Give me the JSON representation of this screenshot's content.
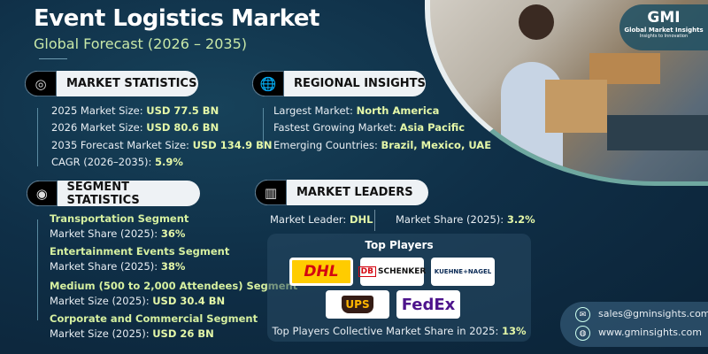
{
  "header": {
    "title": "Event Logistics Market",
    "subtitle": "Global Forecast (2026 – 2035)"
  },
  "brand": {
    "logo_text": "GMI",
    "name": "Global Market Insights",
    "tagline": "Insights to Innovation"
  },
  "market_statistics": {
    "heading": "MARKET STATISTICS",
    "icon": "chart-globe-icon",
    "items": [
      {
        "label": "2025 Market Size: ",
        "value": "USD 77.5 BN"
      },
      {
        "label": "2026 Market Size: ",
        "value": "USD 80.6 BN"
      },
      {
        "label": "2035 Forecast Market Size: ",
        "value": "USD 134.9 BN"
      },
      {
        "label": "CAGR (2026–2035): ",
        "value": "5.9%"
      }
    ]
  },
  "regional_insights": {
    "heading": "REGIONAL INSIGHTS",
    "icon": "globe-icon",
    "items": [
      {
        "label": "Largest Market: ",
        "value": "North America"
      },
      {
        "label": "Fastest Growing Market: ",
        "value": "Asia Pacific"
      },
      {
        "label": "Emerging Countries: ",
        "value": "Brazil, Mexico, UAE"
      }
    ]
  },
  "segment_statistics": {
    "heading": "SEGMENT STATISTICS",
    "icon": "target-chart-icon",
    "items": [
      {
        "name": "Transportation Segment",
        "label": "Market Share (2025): ",
        "value": "36%"
      },
      {
        "name": "Entertainment Events Segment",
        "label": "Market Share (2025): ",
        "value": "38%"
      },
      {
        "name": "Medium (500 to 2,000 Attendees) Segment",
        "label": "Market Size (2025): ",
        "value": "USD 30.4 BN"
      },
      {
        "name": "Corporate and Commercial Segment",
        "label": "Market Size (2025): ",
        "value": "USD 26 BN"
      }
    ]
  },
  "market_leaders": {
    "heading": "MARKET LEADERS",
    "icon": "leaderboard-icon",
    "leader_label": "Market Leader: ",
    "leader_value": "DHL",
    "share_label": "Market Share (2025): ",
    "share_value": "3.2%",
    "top_players_title": "Top Players",
    "players": [
      "DHL",
      "DB SCHENKER",
      "KUEHNE+NAGEL",
      "UPS",
      "FedEx"
    ],
    "collective_label": "Top Players Collective Market Share in 2025: ",
    "collective_value": "13%"
  },
  "contact": {
    "email": "sales@gminsights.com",
    "website": "www.gminsights.com"
  },
  "colors": {
    "background": "#0f2f47",
    "accent": "#e4f7a8",
    "dhl_yellow": "#ffcc00",
    "dhl_red": "#d40511",
    "fedex_purple": "#4d148c",
    "fedex_orange": "#ff6600",
    "ups_brown": "#351c15",
    "ups_gold": "#ffb500"
  }
}
